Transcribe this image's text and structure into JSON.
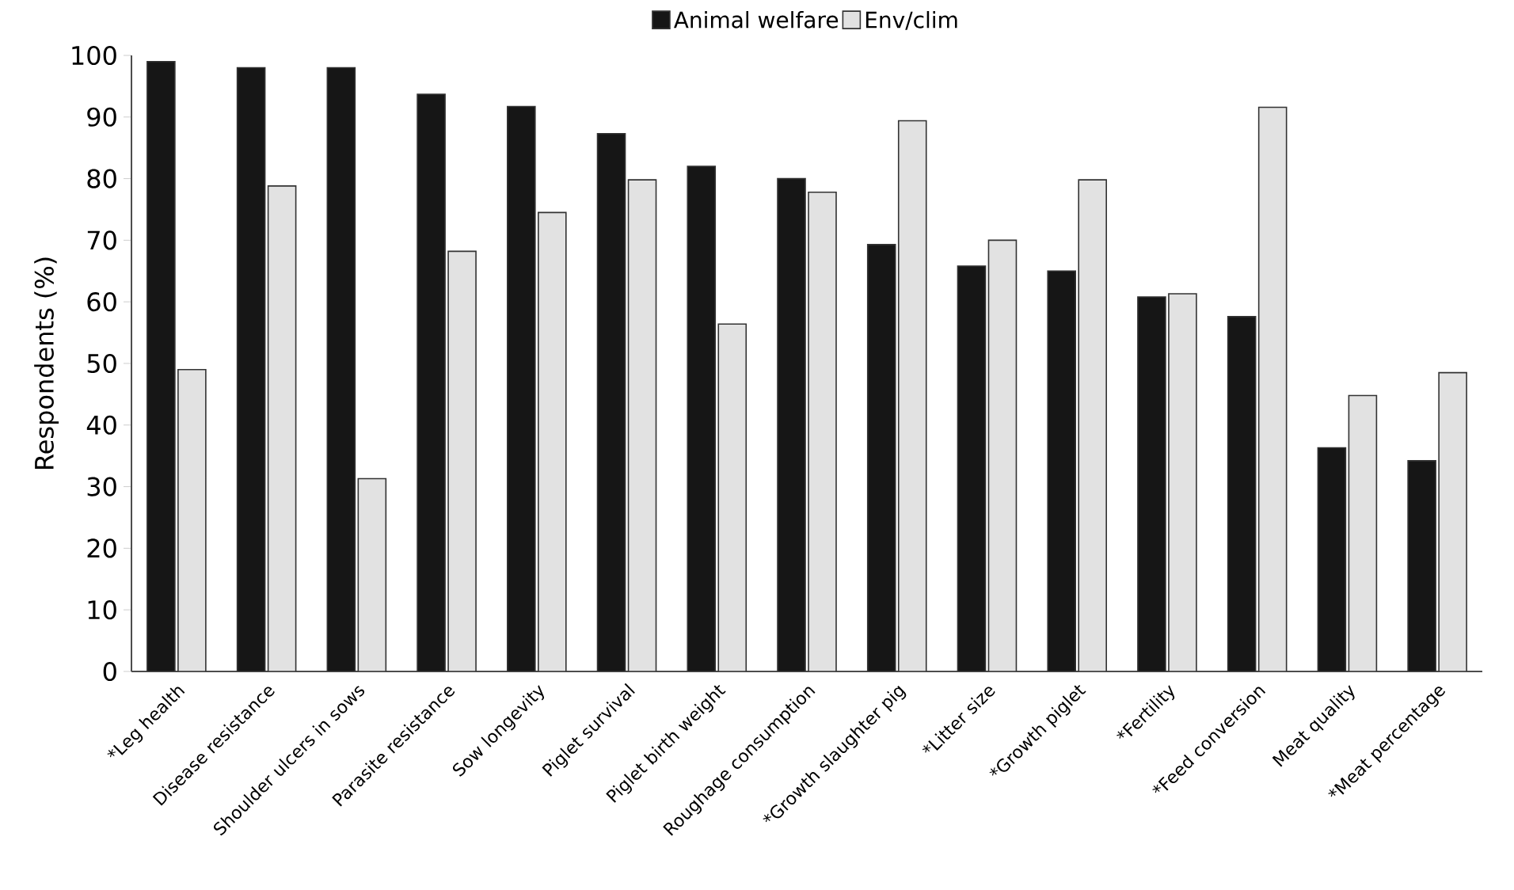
{
  "chart_data": {
    "type": "bar",
    "ylabel": "Respondents (%)",
    "categories": [
      "*Leg health",
      "Disease resistance",
      "Shoulder ulcers in sows",
      "Parasite resistance",
      "Sow longevity",
      "Piglet survival",
      "Piglet birth weight",
      "Roughage consumption",
      "*Growth slaughter pig",
      "*Litter size",
      "*Growth piglet",
      "*Fertility",
      "*Feed conversion",
      "Meat quality",
      "*Meat percentage"
    ],
    "series": [
      {
        "name": "Animal welfare",
        "color": "#161616",
        "values": [
          99,
          98,
          98,
          93.7,
          91.7,
          87.3,
          82,
          80,
          69.3,
          65.8,
          65,
          60.8,
          57.6,
          36.3,
          34.2
        ]
      },
      {
        "name": "Env/clim",
        "color": "#e2e2e2",
        "values": [
          49,
          78.8,
          31.3,
          68.2,
          74.5,
          79.8,
          56.4,
          77.8,
          89.4,
          70,
          79.8,
          61.3,
          91.6,
          44.8,
          48.5
        ]
      }
    ],
    "ylim": [
      0,
      100
    ],
    "yticks": [
      0,
      10,
      20,
      30,
      40,
      50,
      60,
      70,
      80,
      90,
      100
    ],
    "grid": false,
    "legend": "top"
  }
}
